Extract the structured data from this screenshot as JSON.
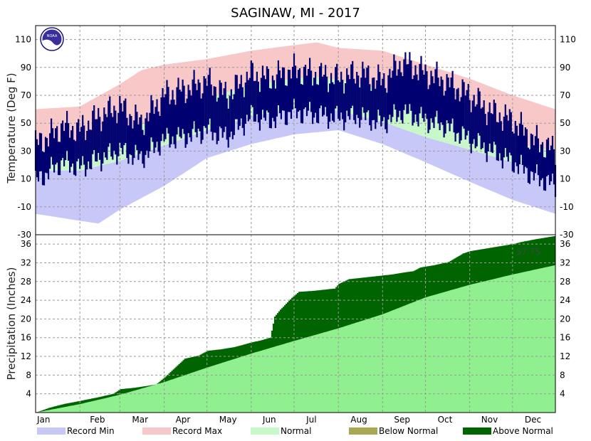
{
  "chart_data": [
    {
      "type": "line",
      "title": "SAGINAW, MI - 2017",
      "ylabel": "Temperature (Deg F)",
      "xlabel": "",
      "ylim": [
        -30,
        120
      ],
      "yticks": [
        -30,
        -10,
        10,
        30,
        50,
        70,
        90,
        110
      ],
      "months": [
        "Jan",
        "Feb",
        "Mar",
        "Apr",
        "May",
        "Jun",
        "Jul",
        "Aug",
        "Sep",
        "Oct",
        "Nov",
        "Dec"
      ],
      "grid": true,
      "colors": {
        "record_min": "#c8c8f8",
        "record_max": "#f8c8c8",
        "normal": "#c8f8c8",
        "observed": "#000070"
      },
      "series": [
        {
          "name": "Record Min",
          "x_doy": [
            1,
            32,
            45,
            60,
            91,
            121,
            152,
            182,
            213,
            244,
            274,
            305,
            335,
            365
          ],
          "values": [
            -15,
            -20,
            -22,
            -12,
            5,
            25,
            35,
            42,
            45,
            35,
            22,
            8,
            -5,
            -15
          ]
        },
        {
          "name": "Record Max",
          "x_doy": [
            1,
            32,
            60,
            75,
            91,
            121,
            152,
            182,
            198,
            213,
            244,
            274,
            305,
            335,
            365
          ],
          "values": [
            60,
            62,
            78,
            88,
            92,
            96,
            102,
            106,
            108,
            104,
            102,
            92,
            82,
            70,
            60
          ]
        },
        {
          "name": "Normal High",
          "x_doy": [
            1,
            32,
            60,
            91,
            121,
            152,
            182,
            200,
            213,
            244,
            274,
            305,
            335,
            365
          ],
          "values": [
            30,
            32,
            42,
            56,
            68,
            77,
            82,
            83,
            81,
            74,
            61,
            47,
            36,
            30
          ]
        },
        {
          "name": "Normal Low",
          "x_doy": [
            1,
            32,
            60,
            91,
            121,
            152,
            182,
            200,
            213,
            244,
            274,
            305,
            335,
            365
          ],
          "values": [
            16,
            16,
            23,
            34,
            45,
            55,
            60,
            61,
            59,
            51,
            40,
            31,
            22,
            16
          ]
        },
        {
          "name": "Observed High",
          "x_doy": [
            1,
            10,
            20,
            32,
            45,
            60,
            75,
            91,
            105,
            121,
            135,
            152,
            165,
            182,
            198,
            213,
            228,
            244,
            258,
            274,
            288,
            305,
            320,
            335,
            350,
            365
          ],
          "values": [
            35,
            40,
            48,
            45,
            55,
            62,
            50,
            70,
            74,
            80,
            70,
            85,
            82,
            88,
            85,
            82,
            86,
            80,
            94,
            86,
            80,
            70,
            58,
            52,
            38,
            30
          ]
        },
        {
          "name": "Observed Low",
          "x_doy": [
            1,
            10,
            20,
            32,
            45,
            60,
            75,
            91,
            105,
            121,
            135,
            152,
            165,
            182,
            198,
            213,
            228,
            244,
            258,
            274,
            288,
            305,
            320,
            335,
            350,
            365
          ],
          "values": [
            8,
            15,
            22,
            18,
            24,
            30,
            25,
            38,
            40,
            45,
            40,
            55,
            52,
            58,
            56,
            54,
            55,
            50,
            58,
            52,
            48,
            38,
            30,
            22,
            12,
            5
          ]
        }
      ]
    },
    {
      "type": "area",
      "ylabel": "Precipitation (Inches)",
      "xlabel": "",
      "ylim": [
        0,
        38
      ],
      "yticks": [
        4,
        8,
        12,
        16,
        20,
        24,
        28,
        32,
        36
      ],
      "months": [
        "Jan",
        "Feb",
        "Mar",
        "Apr",
        "May",
        "Jun",
        "Jul",
        "Aug",
        "Sep",
        "Oct",
        "Nov",
        "Dec"
      ],
      "grid": true,
      "total_label": "37.75",
      "colors": {
        "normal": "#90f090",
        "above_normal": "#006400",
        "below_normal": "#a8a850"
      },
      "series": [
        {
          "name": "Normal",
          "x_doy": [
            1,
            32,
            60,
            91,
            121,
            152,
            182,
            213,
            244,
            274,
            305,
            335,
            365
          ],
          "values": [
            0,
            1.8,
            3.8,
            6.5,
            9.6,
            12.6,
            15.3,
            18.0,
            21.0,
            24.6,
            27.3,
            29.5,
            31.5
          ]
        },
        {
          "name": "Observed",
          "x_doy": [
            1,
            10,
            20,
            32,
            45,
            55,
            60,
            70,
            85,
            91,
            98,
            105,
            115,
            121,
            130,
            140,
            152,
            158,
            165,
            168,
            172,
            180,
            185,
            195,
            210,
            213,
            220,
            235,
            244,
            250,
            260,
            265,
            270,
            280,
            290,
            300,
            305,
            315,
            325,
            335,
            340,
            350,
            365
          ],
          "values": [
            0,
            1.0,
            1.8,
            2.5,
            3.3,
            4.0,
            5.0,
            5.3,
            6.0,
            7.5,
            9.5,
            11.5,
            12.2,
            13.2,
            13.5,
            14.0,
            15.0,
            15.4,
            16.0,
            20.5,
            22.0,
            24.5,
            25.8,
            26.0,
            26.5,
            27.5,
            28.5,
            29.0,
            29.3,
            29.5,
            30.0,
            30.2,
            31.0,
            31.5,
            32.2,
            34.0,
            34.5,
            35.0,
            35.5,
            36.0,
            36.4,
            37.0,
            37.75
          ]
        }
      ]
    }
  ],
  "legend": [
    {
      "label": "Record Min",
      "color": "#c8c8f8"
    },
    {
      "label": "Record Max",
      "color": "#f8c8c8"
    },
    {
      "label": "Normal",
      "color": "#c8f8c8"
    },
    {
      "label": "Below Normal",
      "color": "#a8a850"
    },
    {
      "label": "Above Normal",
      "color": "#006400"
    }
  ],
  "logo": {
    "text": "NOAA",
    "icon": "noaa-logo-icon"
  }
}
